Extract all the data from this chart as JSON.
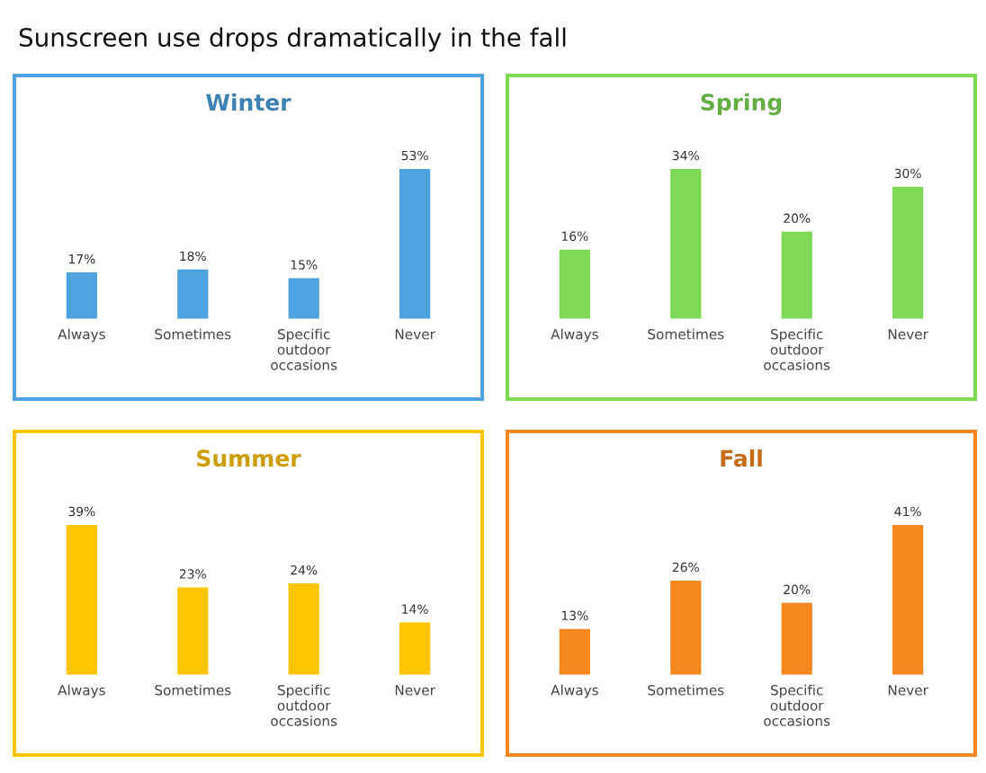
{
  "chart_data": [
    {
      "type": "bar",
      "title": "Winter",
      "annotations": [
        "Sunscreen use drops dramatically in the fall"
      ],
      "categories": [
        "Always",
        "Sometimes",
        "Specific\noutdoor\noccasions",
        "Never"
      ],
      "values": [
        17,
        18,
        15,
        53
      ],
      "value_labels": [
        "17%",
        "18%",
        "15%",
        "53%"
      ],
      "color": "#4ea3e0",
      "tick_labels": "x"
    },
    {
      "type": "bar",
      "title": "Spring",
      "categories": [
        "Always",
        "Sometimes",
        "Specific\noutdoor\noccasions",
        "Never"
      ],
      "values": [
        16,
        34,
        20,
        30
      ],
      "value_labels": [
        "16%",
        "34%",
        "20%",
        "30%"
      ],
      "color": "#7ed957",
      "tick_labels": "x"
    },
    {
      "type": "bar",
      "title": "Summer",
      "categories": [
        "Always",
        "Sometimes",
        "Specific\noutdoor\noccasions",
        "Never"
      ],
      "values": [
        39,
        23,
        24,
        14
      ],
      "value_labels": [
        "39%",
        "23%",
        "24%",
        "14%"
      ],
      "color": "#ffc600",
      "tick_labels": "x"
    },
    {
      "type": "bar",
      "title": "Fall",
      "categories": [
        "Always",
        "Sometimes",
        "Specific\noutdoor\noccasions",
        "Never"
      ],
      "values": [
        13,
        26,
        20,
        41
      ],
      "value_labels": [
        "13%",
        "26%",
        "20%",
        "41%"
      ],
      "color": "#f7871f",
      "tick_labels": "x"
    }
  ]
}
